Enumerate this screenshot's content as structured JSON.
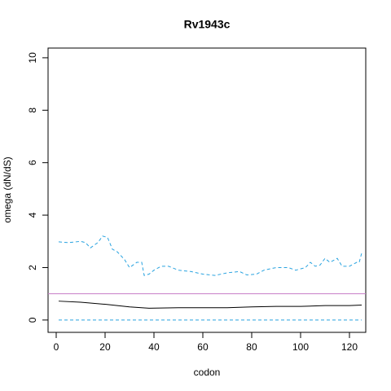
{
  "chart_data": {
    "type": "line",
    "title": "Rv1943c",
    "x_label": "codon",
    "y_label": "omega (dN/dS)",
    "xlim": [
      -3.33,
      126.67
    ],
    "xticks": [
      0,
      20,
      40,
      60,
      80,
      100,
      120
    ],
    "ylim": [
      -0.47,
      10.37
    ],
    "yticks": [
      0,
      2,
      4,
      6,
      8,
      10
    ],
    "reference_line": {
      "value": 1,
      "color": "#c77cc7"
    },
    "series": [
      {
        "color": "#29a3e0",
        "dashed": true,
        "x": [
          1,
          5,
          10,
          12,
          14,
          17,
          19,
          21,
          23,
          25,
          28,
          30,
          33,
          35,
          36,
          38,
          40,
          43,
          46,
          50,
          55,
          60,
          65,
          70,
          75,
          78,
          82,
          85,
          90,
          95,
          98,
          102,
          104,
          106,
          108,
          110,
          112,
          115,
          117,
          120,
          123,
          124,
          125
        ],
        "values": [
          2.98,
          2.95,
          3.0,
          2.95,
          2.75,
          2.95,
          3.2,
          3.15,
          2.7,
          2.6,
          2.3,
          2.0,
          2.2,
          2.2,
          1.7,
          1.75,
          1.9,
          2.05,
          2.05,
          1.9,
          1.85,
          1.75,
          1.7,
          1.8,
          1.85,
          1.72,
          1.75,
          1.9,
          2.0,
          2.0,
          1.9,
          2.0,
          2.2,
          2.05,
          2.1,
          2.35,
          2.2,
          2.35,
          2.05,
          2.05,
          2.2,
          2.2,
          2.55
        ]
      },
      {
        "color": "#000000",
        "dashed": false,
        "x": [
          1,
          10,
          20,
          30,
          38,
          50,
          60,
          70,
          80,
          90,
          100,
          110,
          120,
          125
        ],
        "values": [
          0.72,
          0.68,
          0.6,
          0.5,
          0.45,
          0.47,
          0.47,
          0.47,
          0.5,
          0.52,
          0.52,
          0.55,
          0.55,
          0.57
        ]
      },
      {
        "color": "#29a3e0",
        "dashed": true,
        "x": [
          1,
          125
        ],
        "values": [
          0,
          0
        ]
      }
    ]
  }
}
